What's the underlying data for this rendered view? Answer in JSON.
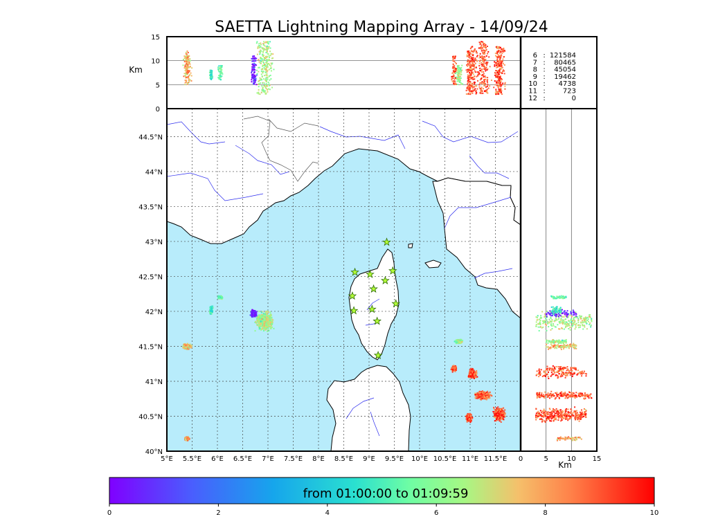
{
  "title": "SAETTA Lightning Mapping Array - 14/09/24",
  "colors": {
    "sea": "#b8ecfb",
    "land": "#ffffff",
    "river": "#2222ee",
    "coast": "#000000",
    "border": "#444444",
    "station_fill": "#b6ff3a",
    "highlight": "#ff0000"
  },
  "chart_data": {
    "type": "scatter",
    "map": {
      "lon_range": [
        5.0,
        12.0
      ],
      "lat_range": [
        40.0,
        44.9
      ],
      "lon_ticks": [
        "5°E",
        "5.5°E",
        "6°E",
        "6.5°E",
        "7°E",
        "7.5°E",
        "8°E",
        "8.5°E",
        "9°E",
        "9.5°E",
        "10°E",
        "10.5°E",
        "11°E",
        "11.5°E"
      ],
      "lon_tick_values": [
        5.0,
        5.5,
        6.0,
        6.5,
        7.0,
        7.5,
        8.0,
        8.5,
        9.0,
        9.5,
        10.0,
        10.5,
        11.0,
        11.5
      ],
      "lat_ticks": [
        "40°N",
        "40.5°N",
        "41°N",
        "41.5°N",
        "42°N",
        "42.5°N",
        "43°N",
        "43.5°N",
        "44°N",
        "44.5°N"
      ],
      "lat_tick_values": [
        40.0,
        40.5,
        41.0,
        41.5,
        42.0,
        42.5,
        43.0,
        43.5,
        44.0,
        44.5
      ],
      "grid": "dotted"
    },
    "altitude_axis": {
      "label": "Km",
      "range": [
        0,
        15
      ],
      "ticks": [
        "0",
        "5",
        "10",
        "15"
      ],
      "tick_values": [
        0,
        5,
        10,
        15
      ]
    },
    "altitude_histogram": [
      {
        "altitude": "6",
        "count": "121584",
        "highlight": false
      },
      {
        "altitude": "7",
        "count": "80465",
        "highlight": true
      },
      {
        "altitude": "8",
        "count": "45054",
        "highlight": false
      },
      {
        "altitude": "9",
        "count": "19462",
        "highlight": false
      },
      {
        "altitude": "10",
        "count": "4738",
        "highlight": false
      },
      {
        "altitude": "11",
        "count": "723",
        "highlight": false
      },
      {
        "altitude": "12",
        "count": "0",
        "highlight": false
      }
    ],
    "stations": [
      {
        "lon": 9.35,
        "lat": 42.99
      },
      {
        "lon": 8.72,
        "lat": 42.56
      },
      {
        "lon": 9.02,
        "lat": 42.53
      },
      {
        "lon": 9.47,
        "lat": 42.58
      },
      {
        "lon": 9.32,
        "lat": 42.44
      },
      {
        "lon": 9.09,
        "lat": 42.32
      },
      {
        "lon": 8.67,
        "lat": 42.22
      },
      {
        "lon": 9.53,
        "lat": 42.11
      },
      {
        "lon": 8.7,
        "lat": 42.01
      },
      {
        "lon": 9.06,
        "lat": 42.03
      },
      {
        "lon": 9.16,
        "lat": 41.86
      },
      {
        "lon": 9.18,
        "lat": 41.37
      }
    ],
    "cells": [
      {
        "lon": 6.93,
        "lat": 41.86,
        "dlon": 0.22,
        "dlat": 0.16,
        "alt_min": 3,
        "alt_max": 14,
        "time": 6.5
      },
      {
        "lon": 6.72,
        "lat": 41.97,
        "dlon": 0.08,
        "dlat": 0.06,
        "alt_min": 5,
        "alt_max": 11,
        "time": 0.5
      },
      {
        "lon": 5.4,
        "lat": 41.5,
        "dlon": 0.12,
        "dlat": 0.05,
        "alt_min": 5,
        "alt_max": 11,
        "time": 7.5
      },
      {
        "lon": 6.06,
        "lat": 42.2,
        "dlon": 0.06,
        "dlat": 0.03,
        "alt_min": 6,
        "alt_max": 9,
        "time": 5.5
      },
      {
        "lon": 5.88,
        "lat": 42.02,
        "dlon": 0.04,
        "dlat": 0.08,
        "alt_min": 6,
        "alt_max": 8,
        "time": 5.0
      },
      {
        "lon": 5.4,
        "lat": 40.18,
        "dlon": 0.06,
        "dlat": 0.04,
        "alt_min": 7,
        "alt_max": 12,
        "time": 8.0
      },
      {
        "lon": 10.78,
        "lat": 41.57,
        "dlon": 0.1,
        "dlat": 0.04,
        "alt_min": 5,
        "alt_max": 9,
        "time": 6.2
      },
      {
        "lon": 10.68,
        "lat": 41.18,
        "dlon": 0.06,
        "dlat": 0.05,
        "alt_min": 5,
        "alt_max": 11,
        "time": 9.0
      },
      {
        "lon": 11.05,
        "lat": 41.11,
        "dlon": 0.1,
        "dlat": 0.08,
        "alt_min": 3,
        "alt_max": 13,
        "time": 9.0
      },
      {
        "lon": 11.25,
        "lat": 40.8,
        "dlon": 0.2,
        "dlat": 0.07,
        "alt_min": 3,
        "alt_max": 14,
        "time": 9.0
      },
      {
        "lon": 10.98,
        "lat": 40.48,
        "dlon": 0.08,
        "dlat": 0.08,
        "alt_min": 3,
        "alt_max": 12,
        "time": 9.0
      },
      {
        "lon": 11.58,
        "lat": 40.53,
        "dlon": 0.14,
        "dlat": 0.12,
        "alt_min": 3,
        "alt_max": 13,
        "time": 9.0
      }
    ],
    "colorbar": {
      "label": "from 01:00:00 to 01:09:59",
      "range": [
        0,
        10
      ],
      "ticks": [
        "0",
        "2",
        "4",
        "6",
        "8",
        "10"
      ],
      "tick_values": [
        0,
        2,
        4,
        6,
        8,
        10
      ],
      "colormap": "rainbow"
    }
  }
}
